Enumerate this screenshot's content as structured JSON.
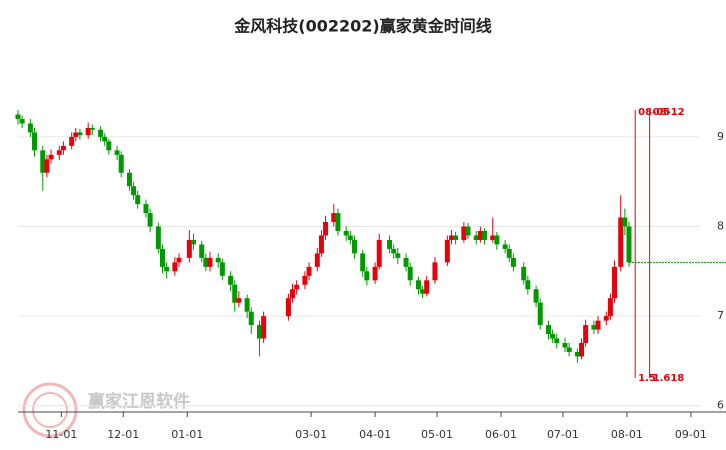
{
  "chart_data": {
    "type": "candlestick",
    "title": "金风科技(002202)赢家黄金时间线",
    "x": [
      "10-11",
      "10-13",
      "10-17",
      "10-19",
      "10-23",
      "10-25",
      "10-27",
      "10-31",
      "11-02",
      "11-06",
      "11-08",
      "11-10",
      "11-14",
      "11-16",
      "11-20",
      "11-22",
      "11-24",
      "11-28",
      "11-30",
      "12-04",
      "12-06",
      "12-08",
      "12-12",
      "12-14",
      "12-18",
      "12-20",
      "12-22",
      "12-26",
      "12-28",
      "01-02",
      "01-04",
      "01-08",
      "01-10",
      "01-12",
      "01-16",
      "01-18",
      "01-22",
      "01-24",
      "01-26",
      "01-30",
      "02-01",
      "02-05",
      "02-07",
      "02-19",
      "02-21",
      "02-23",
      "02-27",
      "02-29",
      "03-04",
      "03-06",
      "03-08",
      "03-12",
      "03-14",
      "03-18",
      "03-20",
      "03-22",
      "03-26",
      "03-28",
      "04-01",
      "04-03",
      "04-08",
      "04-10",
      "04-12",
      "04-16",
      "04-18",
      "04-22",
      "04-24",
      "04-26",
      "04-30",
      "05-06",
      "05-08",
      "05-10",
      "05-14",
      "05-16",
      "05-20",
      "05-22",
      "05-24",
      "05-28",
      "05-30",
      "06-03",
      "06-05",
      "06-07",
      "06-12",
      "06-14",
      "06-18",
      "06-20",
      "06-24",
      "06-26",
      "06-28",
      "07-02",
      "07-04",
      "07-08",
      "07-10",
      "07-12",
      "07-16",
      "07-18",
      "07-22",
      "07-24",
      "07-26",
      "07-29",
      "07-31",
      "08-02"
    ],
    "open": [
      9.25,
      9.2,
      9.15,
      9.05,
      8.85,
      8.6,
      8.75,
      8.8,
      8.85,
      8.9,
      9.0,
      9.05,
      9.02,
      9.1,
      9.08,
      9.0,
      8.95,
      8.85,
      8.8,
      8.6,
      8.45,
      8.35,
      8.25,
      8.15,
      8.0,
      7.75,
      7.55,
      7.5,
      7.6,
      7.65,
      7.85,
      7.8,
      7.65,
      7.55,
      7.65,
      7.6,
      7.45,
      7.35,
      7.15,
      7.2,
      7.05,
      6.9,
      6.75,
      7.0,
      7.2,
      7.3,
      7.35,
      7.45,
      7.55,
      7.7,
      7.9,
      8.05,
      8.15,
      7.95,
      7.9,
      7.85,
      7.7,
      7.5,
      7.4,
      7.55,
      7.85,
      7.75,
      7.7,
      7.65,
      7.55,
      7.4,
      7.3,
      7.25,
      7.4,
      7.6,
      7.85,
      7.9,
      7.85,
      8.0,
      7.9,
      7.85,
      7.95,
      7.85,
      7.9,
      7.8,
      7.75,
      7.65,
      7.55,
      7.4,
      7.3,
      7.15,
      6.9,
      6.8,
      6.75,
      6.7,
      6.65,
      6.6,
      6.55,
      6.7,
      6.9,
      6.85,
      6.95,
      7.0,
      7.2,
      7.55,
      8.1,
      8.0
    ],
    "high": [
      9.3,
      9.24,
      9.2,
      9.1,
      8.9,
      8.8,
      8.86,
      8.9,
      8.95,
      9.05,
      9.1,
      9.09,
      9.16,
      9.14,
      9.12,
      9.04,
      8.98,
      8.9,
      8.84,
      8.64,
      8.5,
      8.4,
      8.3,
      8.2,
      8.04,
      7.8,
      7.6,
      7.66,
      7.7,
      7.96,
      7.92,
      7.84,
      7.7,
      7.72,
      7.7,
      7.64,
      7.5,
      7.4,
      7.28,
      7.24,
      7.1,
      6.95,
      7.05,
      7.25,
      7.36,
      7.4,
      7.5,
      7.6,
      7.76,
      7.96,
      8.12,
      8.25,
      8.2,
      8.0,
      7.95,
      7.9,
      7.74,
      7.55,
      7.6,
      7.92,
      7.9,
      7.8,
      7.76,
      7.7,
      7.6,
      7.44,
      7.34,
      7.45,
      7.66,
      7.9,
      7.96,
      7.94,
      8.05,
      8.04,
      7.95,
      8.0,
      7.98,
      8.1,
      7.94,
      7.85,
      7.8,
      7.7,
      7.6,
      7.45,
      7.34,
      7.2,
      6.95,
      6.85,
      6.8,
      6.76,
      6.7,
      6.64,
      6.75,
      6.96,
      6.95,
      7.0,
      7.05,
      7.25,
      7.62,
      8.35,
      8.2,
      8.05
    ],
    "low": [
      9.14,
      9.1,
      9.0,
      8.78,
      8.4,
      8.55,
      8.7,
      8.74,
      8.8,
      8.86,
      8.95,
      8.97,
      8.98,
      9.02,
      8.95,
      8.9,
      8.8,
      8.74,
      8.55,
      8.4,
      8.3,
      8.2,
      8.1,
      7.94,
      7.7,
      7.48,
      7.42,
      7.45,
      7.55,
      7.6,
      7.74,
      7.6,
      7.5,
      7.5,
      7.54,
      7.4,
      7.28,
      7.05,
      7.1,
      6.98,
      6.8,
      6.55,
      6.7,
      6.95,
      7.15,
      7.24,
      7.3,
      7.4,
      7.5,
      7.66,
      7.85,
      8.0,
      7.9,
      7.84,
      7.8,
      7.64,
      7.44,
      7.34,
      7.36,
      7.52,
      7.7,
      7.64,
      7.58,
      7.5,
      7.34,
      7.24,
      7.2,
      7.22,
      7.36,
      7.56,
      7.8,
      7.8,
      7.82,
      7.86,
      7.8,
      7.82,
      7.8,
      7.82,
      7.74,
      7.7,
      7.6,
      7.5,
      7.35,
      7.24,
      7.1,
      6.85,
      6.74,
      6.7,
      6.64,
      6.6,
      6.55,
      6.48,
      6.52,
      6.66,
      6.8,
      6.8,
      6.9,
      6.96,
      7.15,
      7.5,
      7.9,
      7.55
    ],
    "close": [
      9.2,
      9.15,
      9.05,
      8.85,
      8.6,
      8.75,
      8.8,
      8.85,
      8.9,
      9.0,
      9.05,
      9.02,
      9.1,
      9.08,
      9.0,
      8.95,
      8.85,
      8.8,
      8.6,
      8.45,
      8.35,
      8.25,
      8.15,
      8.0,
      7.75,
      7.55,
      7.5,
      7.6,
      7.65,
      7.85,
      7.8,
      7.65,
      7.55,
      7.65,
      7.6,
      7.45,
      7.35,
      7.15,
      7.2,
      7.05,
      6.9,
      6.75,
      7.0,
      7.2,
      7.3,
      7.35,
      7.45,
      7.55,
      7.7,
      7.9,
      8.05,
      8.15,
      7.95,
      7.9,
      7.85,
      7.7,
      7.5,
      7.4,
      7.55,
      7.85,
      7.75,
      7.7,
      7.65,
      7.55,
      7.4,
      7.3,
      7.25,
      7.4,
      7.6,
      7.85,
      7.9,
      7.85,
      8.0,
      7.9,
      7.85,
      7.95,
      7.85,
      7.9,
      7.8,
      7.75,
      7.65,
      7.55,
      7.4,
      7.3,
      7.15,
      6.9,
      6.8,
      6.75,
      6.7,
      6.65,
      6.6,
      6.55,
      6.7,
      6.9,
      6.85,
      6.95,
      7.0,
      7.2,
      7.55,
      8.1,
      8.0,
      7.6
    ],
    "up_color": "#e8000b",
    "down_color": "#009a00",
    "xlim": [
      "10-11",
      "09-18"
    ],
    "xticks": [
      "11-01",
      "12-01",
      "01-01",
      "03-01",
      "04-01",
      "05-01",
      "06-01",
      "07-01",
      "08-01",
      "09-01"
    ],
    "ylim": [
      5.93,
      9.97
    ],
    "yticks": [
      6,
      7,
      8,
      9
    ],
    "grid": true,
    "time_lines": [
      {
        "date": "08-05",
        "ratio": 1.5
      },
      {
        "date": "08-12",
        "ratio": 1.618
      }
    ],
    "time_line_color": "#e8000b",
    "support_line": {
      "value": 7.6,
      "color": "#009a00"
    },
    "watermark": "赢家江恩软件"
  }
}
